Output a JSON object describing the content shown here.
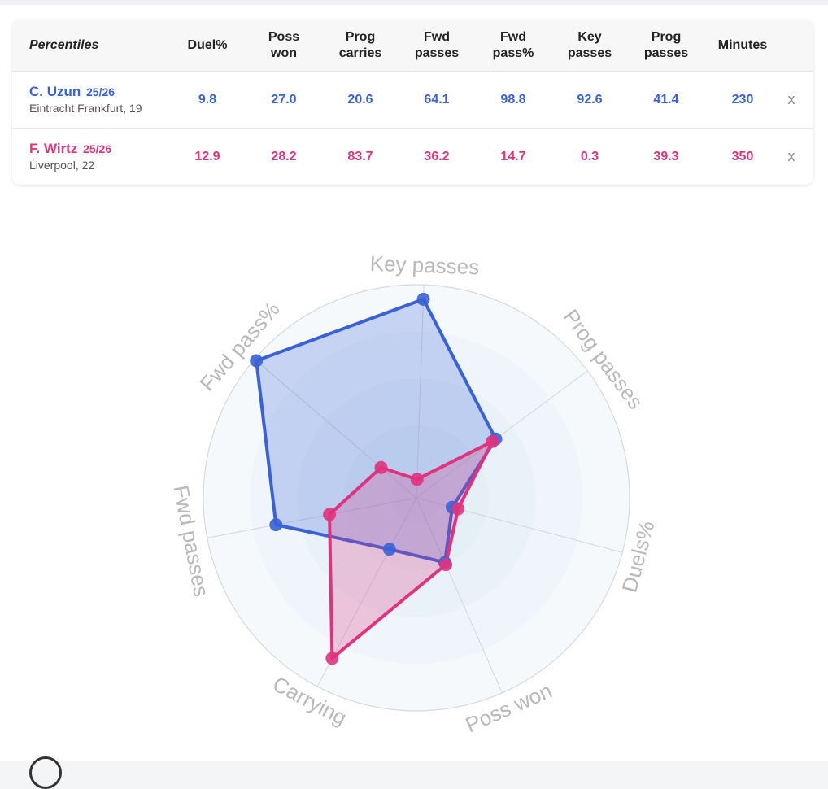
{
  "table": {
    "corner_label": "Percentiles",
    "columns": [
      [
        "Duel%"
      ],
      [
        "Poss",
        "won"
      ],
      [
        "Prog",
        "carries"
      ],
      [
        "Fwd",
        "passes"
      ],
      [
        "Fwd",
        "pass%"
      ],
      [
        "Key",
        "passes"
      ],
      [
        "Prog",
        "passes"
      ],
      [
        "Minutes"
      ]
    ],
    "players": [
      {
        "name": "C. Uzun",
        "season": "25/26",
        "club": "Eintracht Frankfurt, 19",
        "values": [
          "9.8",
          "27.0",
          "20.6",
          "64.1",
          "98.8",
          "92.6",
          "41.4",
          "230"
        ],
        "remove_label": "x",
        "color": "#3a62d6"
      },
      {
        "name": "F. Wirtz",
        "season": "25/26",
        "club": "Liverpool, 22",
        "values": [
          "12.9",
          "28.2",
          "83.7",
          "36.2",
          "14.7",
          "0.3",
          "39.3",
          "350"
        ],
        "remove_label": "x",
        "color": "#e0337e"
      }
    ]
  },
  "chart_data": {
    "type": "radar",
    "axes": [
      "Key passes",
      "Prog passes",
      "Duels%",
      "Poss won",
      "Carrying",
      "Fwd passes",
      "Fwd pass%"
    ],
    "range": [
      0,
      100
    ],
    "series": [
      {
        "name": "C. Uzun",
        "color": "#3a62d6",
        "fill": "#3a62d6",
        "values": [
          92.6,
          41.4,
          9.8,
          27.0,
          20.6,
          64.1,
          98.8
        ]
      },
      {
        "name": "F. Wirtz",
        "color": "#e0337e",
        "fill": "#e0337e",
        "values": [
          0.3,
          39.3,
          12.9,
          28.2,
          83.7,
          36.2,
          14.7
        ]
      }
    ]
  }
}
